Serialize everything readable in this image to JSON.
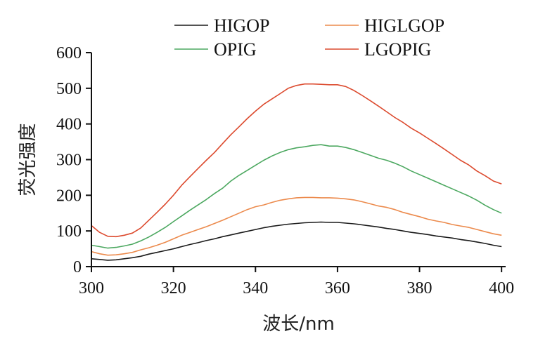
{
  "chart_data": {
    "type": "line",
    "xlabel": "波长/nm",
    "ylabel": "荧光强度",
    "xlim": [
      300,
      401
    ],
    "ylim": [
      0,
      600
    ],
    "xticks": [
      300,
      320,
      340,
      360,
      380,
      400
    ],
    "yticks": [
      0,
      100,
      200,
      300,
      400,
      500,
      600
    ],
    "grid": false,
    "legend_position": "top",
    "x": [
      300,
      302,
      304,
      306,
      308,
      310,
      312,
      314,
      316,
      318,
      320,
      322,
      324,
      326,
      328,
      330,
      332,
      334,
      336,
      338,
      340,
      342,
      344,
      346,
      348,
      350,
      352,
      354,
      356,
      358,
      360,
      362,
      364,
      366,
      368,
      370,
      372,
      374,
      376,
      378,
      380,
      382,
      384,
      386,
      388,
      390,
      392,
      394,
      396,
      398,
      400
    ],
    "series": [
      {
        "name": "HIGOP",
        "color": "#1a1a1a",
        "values": [
          22,
          20,
          18,
          19,
          22,
          25,
          29,
          35,
          40,
          45,
          50,
          56,
          62,
          67,
          73,
          78,
          84,
          89,
          94,
          99,
          104,
          109,
          113,
          116,
          119,
          121,
          123,
          124,
          125,
          124,
          124,
          122,
          120,
          117,
          114,
          111,
          107,
          104,
          100,
          96,
          93,
          90,
          86,
          83,
          80,
          76,
          73,
          69,
          65,
          60,
          56
        ]
      },
      {
        "name": "HIGLGOP",
        "color": "#ec8a4c",
        "values": [
          42,
          36,
          32,
          33,
          36,
          40,
          47,
          53,
          60,
          68,
          78,
          88,
          96,
          104,
          112,
          121,
          130,
          140,
          150,
          160,
          168,
          173,
          180,
          186,
          190,
          193,
          194,
          194,
          193,
          193,
          192,
          190,
          187,
          182,
          176,
          170,
          166,
          160,
          152,
          146,
          140,
          133,
          128,
          124,
          118,
          114,
          110,
          104,
          98,
          92,
          88
        ]
      },
      {
        "name": "OPIG",
        "color": "#4ca860",
        "values": [
          60,
          56,
          52,
          54,
          58,
          63,
          72,
          83,
          96,
          110,
          126,
          142,
          158,
          173,
          188,
          205,
          220,
          240,
          256,
          270,
          284,
          298,
          310,
          320,
          328,
          333,
          336,
          340,
          342,
          338,
          338,
          334,
          328,
          320,
          312,
          304,
          298,
          290,
          280,
          268,
          258,
          248,
          238,
          228,
          218,
          208,
          198,
          186,
          172,
          160,
          150
        ]
      },
      {
        "name": "LGOPIG",
        "color": "#dc4a2e",
        "values": [
          115,
          96,
          85,
          84,
          88,
          94,
          108,
          130,
          152,
          175,
          200,
          228,
          252,
          275,
          298,
          320,
          345,
          370,
          392,
          415,
          436,
          455,
          470,
          485,
          500,
          508,
          512,
          512,
          511,
          510,
          510,
          505,
          494,
          480,
          465,
          450,
          434,
          418,
          404,
          388,
          375,
          360,
          345,
          330,
          314,
          298,
          285,
          268,
          255,
          240,
          232
        ]
      }
    ]
  }
}
